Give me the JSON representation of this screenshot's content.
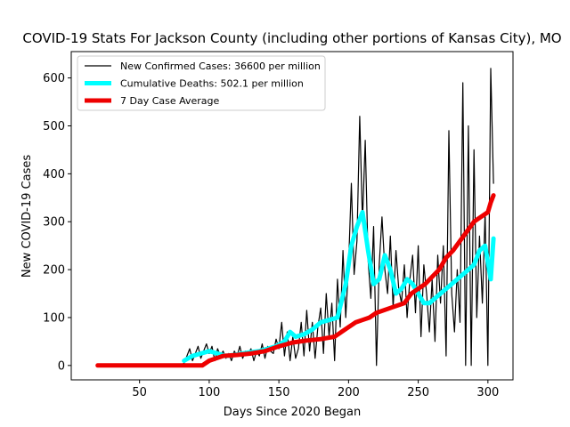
{
  "chart_data": {
    "type": "line",
    "title": "COVID-19 Stats For Jackson County (including other portions of Kansas City), MO",
    "xlabel": "Days Since 2020 Began",
    "ylabel": "New COVID-19 Cases",
    "xlim": [
      1,
      318
    ],
    "ylim": [
      -30,
      655
    ],
    "xticks": [
      50,
      100,
      150,
      200,
      250,
      300
    ],
    "yticks": [
      0,
      100,
      200,
      300,
      400,
      500,
      600
    ],
    "grid": false,
    "legend_position": "top-left",
    "series": [
      {
        "name": "New Confirmed Cases: 36600 per million",
        "color": "#000000",
        "x": [
          20,
          30,
          40,
          50,
          60,
          70,
          80,
          82,
          84,
          86,
          88,
          90,
          92,
          94,
          96,
          98,
          100,
          102,
          104,
          106,
          108,
          110,
          112,
          114,
          116,
          118,
          120,
          122,
          124,
          126,
          128,
          130,
          132,
          134,
          136,
          138,
          140,
          142,
          144,
          146,
          148,
          150,
          152,
          154,
          156,
          158,
          160,
          162,
          164,
          166,
          168,
          170,
          172,
          174,
          176,
          178,
          180,
          182,
          184,
          186,
          188,
          190,
          192,
          194,
          196,
          198,
          200,
          202,
          204,
          206,
          208,
          210,
          212,
          214,
          216,
          218,
          220,
          222,
          224,
          226,
          228,
          230,
          232,
          234,
          236,
          238,
          240,
          242,
          244,
          246,
          248,
          250,
          252,
          254,
          256,
          258,
          260,
          262,
          264,
          266,
          268,
          270,
          272,
          274,
          276,
          278,
          280,
          282,
          284,
          286,
          288,
          290,
          292,
          294,
          296,
          298,
          300,
          302,
          304
        ],
        "values": [
          0,
          0,
          0,
          0,
          0,
          0,
          0,
          5,
          20,
          35,
          10,
          25,
          40,
          15,
          30,
          45,
          25,
          40,
          10,
          35,
          20,
          30,
          15,
          25,
          10,
          30,
          20,
          40,
          15,
          30,
          25,
          35,
          10,
          30,
          20,
          45,
          15,
          40,
          30,
          25,
          55,
          35,
          90,
          20,
          70,
          10,
          60,
          15,
          35,
          90,
          20,
          115,
          30,
          90,
          15,
          80,
          120,
          25,
          150,
          60,
          130,
          10,
          180,
          80,
          240,
          100,
          210,
          380,
          190,
          260,
          520,
          300,
          470,
          220,
          140,
          290,
          0,
          210,
          310,
          200,
          150,
          270,
          120,
          240,
          160,
          130,
          210,
          100,
          180,
          230,
          110,
          250,
          60,
          210,
          150,
          70,
          180,
          50,
          230,
          130,
          250,
          20,
          490,
          150,
          70,
          200,
          90,
          590,
          0,
          500,
          0,
          450,
          100,
          270,
          130,
          320,
          0,
          620,
          380
        ],
        "values_note": "approximate, read from plot"
      },
      {
        "name": "Cumulative Deaths: 502.1 per million",
        "color": "#00ffff",
        "x": [
          82,
          88,
          94,
          100,
          106,
          112,
          118,
          124,
          130,
          136,
          142,
          148,
          154,
          158,
          162,
          168,
          174,
          180,
          186,
          192,
          198,
          202,
          206,
          210,
          214,
          218,
          222,
          226,
          230,
          234,
          238,
          242,
          246,
          250,
          254,
          258,
          262,
          266,
          270,
          274,
          278,
          282,
          286,
          290,
          294,
          298,
          302,
          304
        ],
        "values": [
          10,
          20,
          25,
          30,
          25,
          20,
          22,
          25,
          28,
          30,
          35,
          40,
          50,
          70,
          60,
          65,
          75,
          90,
          95,
          100,
          170,
          250,
          290,
          320,
          240,
          170,
          180,
          230,
          200,
          150,
          160,
          180,
          170,
          150,
          130,
          130,
          140,
          150,
          160,
          170,
          180,
          190,
          200,
          210,
          240,
          250,
          180,
          265
        ]
      },
      {
        "name": "7 Day Case Average",
        "color": "#ee0000",
        "x": [
          20,
          40,
          60,
          80,
          90,
          95,
          100,
          105,
          110,
          120,
          130,
          140,
          150,
          160,
          170,
          180,
          190,
          195,
          200,
          205,
          210,
          215,
          220,
          230,
          240,
          245,
          250,
          255,
          260,
          265,
          270,
          275,
          280,
          285,
          290,
          295,
          300,
          302,
          304
        ],
        "values": [
          0,
          0,
          0,
          0,
          0,
          0,
          10,
          15,
          20,
          22,
          25,
          30,
          40,
          48,
          52,
          55,
          60,
          70,
          80,
          90,
          95,
          100,
          110,
          120,
          130,
          150,
          160,
          170,
          185,
          200,
          225,
          240,
          260,
          280,
          300,
          310,
          320,
          340,
          355
        ]
      }
    ]
  }
}
